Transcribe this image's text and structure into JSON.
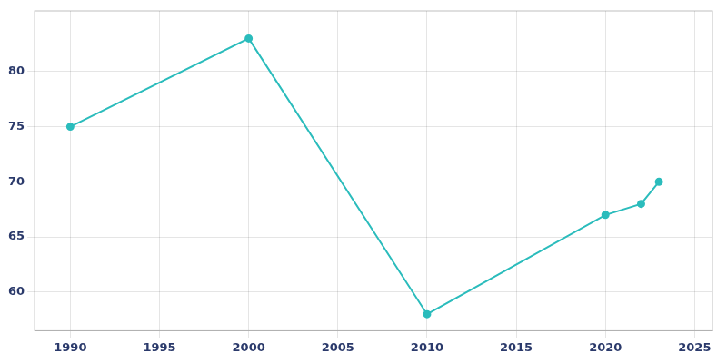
{
  "chart_data": {
    "type": "line",
    "x": [
      1990,
      2000,
      2010,
      2020,
      2022,
      2023
    ],
    "values": [
      75,
      83,
      58,
      67,
      68,
      70
    ],
    "color": "#2bbcbc",
    "marker": "circle",
    "xlim": [
      1988,
      2026
    ],
    "ylim": [
      56.5,
      85.5
    ],
    "xticks": [
      1990,
      1995,
      2000,
      2005,
      2010,
      2015,
      2020,
      2025
    ],
    "yticks": [
      60,
      65,
      70,
      75,
      80
    ],
    "grid": true
  }
}
